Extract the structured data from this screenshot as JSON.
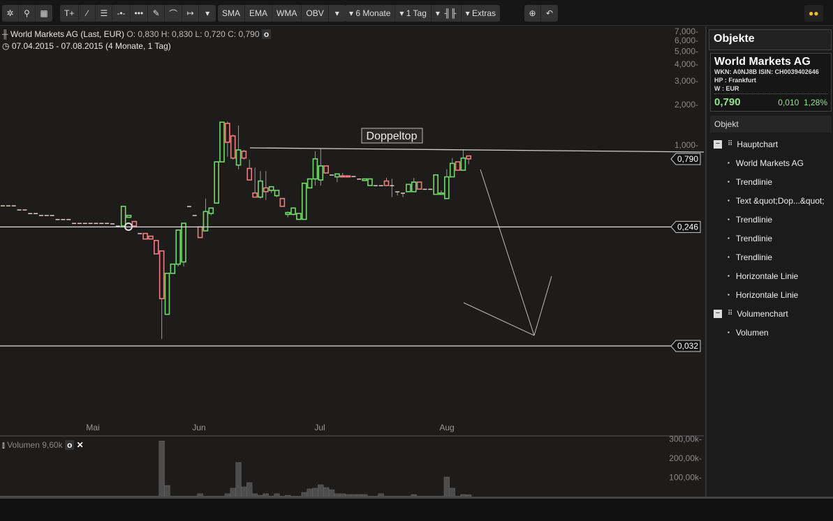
{
  "toolbar": {
    "tools_left": [
      "settings-icon",
      "search-icon",
      "layout-grid-icon"
    ],
    "drawing_tools": [
      "text-tool-icon",
      "line-tool-icon",
      "fibonacci-tool-icon",
      "horizontal-line-icon",
      "horizontal-segment-icon",
      "pen-tool-icon",
      "arc-tool-icon",
      "measure-tool-icon",
      "dropdown-icon"
    ],
    "indicators": [
      "SMA",
      "EMA",
      "WMA",
      "OBV"
    ],
    "period": "6 Monate",
    "interval": "1 Tag",
    "extras": "Extras",
    "text_tool": "T+"
  },
  "chart": {
    "title": "World Markets AG (Last, EUR)",
    "ohlc": "O: 0,830  H: 0,830  L: 0,720  C: 0,790",
    "range": "07.04.2015 - 07.08.2015 (4 Monate, 1 Tag)",
    "y_ticks": [
      "7,000",
      "6,000",
      "5,000",
      "4,000",
      "3,000",
      "2,000",
      "1,000"
    ],
    "y_tick_values": [
      7,
      6,
      5,
      4,
      3,
      2,
      1
    ],
    "scale": "log",
    "x_ticks": [
      "Mai",
      "Jun",
      "Jul",
      "Aug"
    ],
    "price_label": "0,790",
    "last_price": 0.79,
    "hlines": [
      {
        "value": 0.246,
        "label": "0,246"
      },
      {
        "value": 0.032,
        "label": "0,032"
      }
    ],
    "annotation": "Doppeltop",
    "colors": {
      "up": "#6fdc6a",
      "down": "#f07c7c",
      "bg": "#1e1c1b"
    },
    "candles": [
      [
        0.354,
        0.354,
        0.354,
        0.354
      ],
      [
        0.354,
        0.354,
        0.354,
        0.354
      ],
      [
        0.354,
        0.354,
        0.354,
        0.354
      ],
      [
        0.33,
        0.33,
        0.33,
        0.33
      ],
      [
        0.33,
        0.33,
        0.33,
        0.33
      ],
      [
        0.31,
        0.31,
        0.31,
        0.31
      ],
      [
        0.31,
        0.31,
        0.31,
        0.31
      ],
      [
        0.3,
        0.3,
        0.3,
        0.3
      ],
      [
        0.3,
        0.3,
        0.3,
        0.3
      ],
      [
        0.3,
        0.3,
        0.3,
        0.3
      ],
      [
        0.28,
        0.28,
        0.28,
        0.28
      ],
      [
        0.28,
        0.28,
        0.28,
        0.28
      ],
      [
        0.28,
        0.28,
        0.28,
        0.28
      ],
      [
        0.262,
        0.262,
        0.262,
        0.262
      ],
      [
        0.262,
        0.262,
        0.262,
        0.262
      ],
      [
        0.262,
        0.262,
        0.262,
        0.262
      ],
      [
        0.262,
        0.262,
        0.262,
        0.262
      ],
      [
        0.262,
        0.262,
        0.262,
        0.262
      ],
      [
        0.262,
        0.262,
        0.262,
        0.262
      ],
      [
        0.262,
        0.262,
        0.262,
        0.262
      ],
      [
        0.26,
        0.26,
        0.26,
        0.26
      ],
      [
        0.25,
        0.25,
        0.25,
        0.25
      ],
      [
        0.25,
        0.35,
        0.25,
        0.35
      ],
      [
        0.29,
        0.3,
        0.29,
        0.3
      ],
      [
        0.27,
        0.27,
        0.25,
        0.25
      ],
      [
        0.22,
        0.22,
        0.22,
        0.22
      ],
      [
        0.22,
        0.22,
        0.2,
        0.2
      ],
      [
        0.21,
        0.21,
        0.2,
        0.2
      ],
      [
        0.195,
        0.195,
        0.155,
        0.155
      ],
      [
        0.163,
        0.163,
        0.036,
        0.072
      ],
      [
        0.055,
        0.111,
        0.055,
        0.111
      ],
      [
        0.111,
        0.13,
        0.111,
        0.13
      ],
      [
        0.13,
        0.233,
        0.125,
        0.233
      ],
      [
        0.135,
        0.262,
        0.125,
        0.262
      ],
      [
        0.35,
        0.35,
        0.35,
        0.35
      ],
      [
        0.3,
        0.3,
        0.3,
        0.3
      ],
      [
        0.246,
        0.246,
        0.205,
        0.205
      ],
      [
        0.23,
        0.4,
        0.23,
        0.32
      ],
      [
        0.31,
        0.34,
        0.3,
        0.34
      ],
      [
        0.37,
        0.75,
        0.37,
        0.75
      ],
      [
        0.75,
        1.48,
        0.75,
        1.48
      ],
      [
        1.45,
        1.5,
        0.82,
        1.05
      ],
      [
        1.17,
        1.2,
        0.78,
        0.8
      ],
      [
        0.71,
        1.4,
        0.66,
        0.92
      ],
      [
        0.9,
        0.92,
        0.78,
        0.8
      ],
      [
        0.67,
        0.78,
        0.55,
        0.55
      ],
      [
        0.44,
        0.68,
        0.41,
        0.41
      ],
      [
        0.41,
        0.64,
        0.4,
        0.54
      ],
      [
        0.48,
        0.64,
        0.39,
        0.45
      ],
      [
        0.46,
        0.49,
        0.44,
        0.49
      ],
      [
        0.42,
        0.46,
        0.41,
        0.46
      ],
      [
        0.4,
        0.4,
        0.35,
        0.35
      ],
      [
        0.305,
        0.32,
        0.29,
        0.315
      ],
      [
        0.305,
        0.34,
        0.3,
        0.34
      ],
      [
        0.28,
        0.31,
        0.28,
        0.31
      ],
      [
        0.28,
        0.52,
        0.28,
        0.52
      ],
      [
        0.48,
        0.56,
        0.48,
        0.56
      ],
      [
        0.56,
        0.9,
        0.5,
        0.79
      ],
      [
        0.55,
        0.94,
        0.5,
        0.7
      ],
      [
        0.7,
        0.7,
        0.62,
        0.62
      ],
      [
        0.6,
        0.6,
        0.6,
        0.6
      ],
      [
        0.58,
        0.61,
        0.53,
        0.61
      ],
      [
        0.59,
        0.62,
        0.58,
        0.58
      ],
      [
        0.59,
        0.59,
        0.58,
        0.58
      ],
      [
        0.585,
        0.585,
        0.585,
        0.585
      ],
      [
        0.56,
        0.56,
        0.56,
        0.56
      ],
      [
        0.545,
        0.56,
        0.54,
        0.56
      ],
      [
        0.5,
        0.56,
        0.5,
        0.56
      ],
      [
        0.5,
        0.5,
        0.5,
        0.5
      ],
      [
        0.5,
        0.5,
        0.5,
        0.5
      ],
      [
        0.54,
        0.57,
        0.5,
        0.5
      ],
      [
        0.5,
        0.56,
        0.41,
        0.5
      ],
      [
        0.45,
        0.45,
        0.42,
        0.45
      ],
      [
        0.44,
        0.44,
        0.41,
        0.44
      ],
      [
        0.45,
        0.51,
        0.45,
        0.51
      ],
      [
        0.45,
        0.57,
        0.45,
        0.53
      ],
      [
        0.53,
        0.53,
        0.47,
        0.47
      ],
      [
        0.47,
        0.47,
        0.47,
        0.47
      ],
      [
        0.47,
        0.47,
        0.47,
        0.47
      ],
      [
        0.43,
        0.6,
        0.43,
        0.6
      ],
      [
        0.43,
        0.46,
        0.43,
        0.44
      ],
      [
        0.4,
        0.66,
        0.4,
        0.58
      ],
      [
        0.58,
        0.8,
        0.58,
        0.73
      ],
      [
        0.75,
        0.75,
        0.65,
        0.65
      ],
      [
        0.65,
        0.93,
        0.65,
        0.8
      ],
      [
        0.83,
        0.83,
        0.72,
        0.79
      ]
    ]
  },
  "volume": {
    "label": "Volumen",
    "value": "9,60k",
    "y_ticks": [
      "300,00k",
      "200,00k",
      "100,00k"
    ],
    "y_tick_values": [
      300000,
      200000,
      100000
    ],
    "bars": [
      2000,
      2000,
      2000,
      2000,
      2000,
      2000,
      2000,
      2000,
      2000,
      2000,
      2000,
      2000,
      2000,
      2000,
      2000,
      2000,
      2000,
      2000,
      2000,
      2000,
      2000,
      2000,
      2000,
      2000,
      2000,
      2000,
      2000,
      2000,
      2000,
      290000,
      58000,
      2000,
      2000,
      2000,
      2000,
      2000,
      15000,
      2000,
      2000,
      2000,
      2000,
      15000,
      44000,
      178000,
      51000,
      73000,
      15000,
      7000,
      15000,
      2000,
      15000,
      2000,
      7000,
      2000,
      2000,
      22000,
      40000,
      44000,
      62000,
      47000,
      36000,
      15000,
      15000,
      11000,
      11000,
      11000,
      11000,
      2000,
      2000,
      15000,
      2000,
      2000,
      2000,
      2000,
      2000,
      11000,
      2000,
      2000,
      2000,
      2000,
      2000,
      102000,
      44000,
      2000,
      11000,
      9600
    ]
  },
  "sidebar": {
    "title": "Objekte",
    "name": "World Markets AG",
    "ids": "WKN: A0NJ8B ISIN: CH0039402646",
    "hp": "HP : Frankfurt",
    "w": "W : EUR",
    "price": "0,790",
    "change": "0,010",
    "change_pct": "1,28%",
    "section": "Objekt",
    "tree": [
      {
        "label": "Hauptchart",
        "level": 0
      },
      {
        "label": "World Markets AG",
        "level": 1
      },
      {
        "label": "Trendlinie",
        "level": 1
      },
      {
        "label": "Text &quot;Dop...&quot;",
        "level": 1
      },
      {
        "label": "Trendlinie",
        "level": 1
      },
      {
        "label": "Trendlinie",
        "level": 1
      },
      {
        "label": "Trendlinie",
        "level": 1
      },
      {
        "label": "Horizontale Linie",
        "level": 1
      },
      {
        "label": "Horizontale Linie",
        "level": 1
      },
      {
        "label": "Volumenchart",
        "level": 0
      },
      {
        "label": "Volumen",
        "level": 1
      }
    ]
  }
}
